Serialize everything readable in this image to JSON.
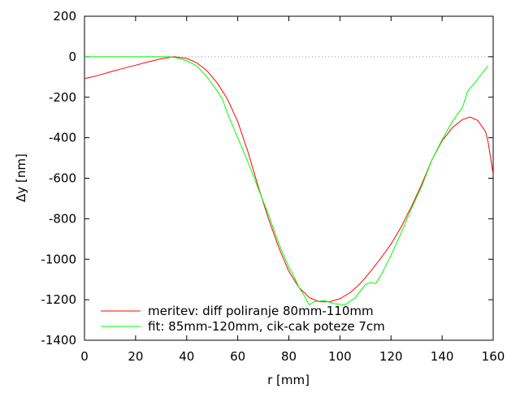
{
  "chart_data": {
    "type": "line",
    "title": "",
    "xlabel": "r [mm]",
    "ylabel": "Δy [nm]",
    "xlim": [
      0,
      160
    ],
    "ylim": [
      -1400,
      200
    ],
    "xticks": [
      0,
      20,
      40,
      60,
      80,
      100,
      120,
      140,
      160
    ],
    "yticks": [
      200,
      0,
      -200,
      -400,
      -600,
      -800,
      -1000,
      -1200,
      -1400
    ],
    "xtick_labels": [
      "0",
      "20",
      "40",
      "60",
      "80",
      "100",
      "120",
      "140",
      "160"
    ],
    "ytick_labels": [
      "200",
      "0",
      "-200",
      "-400",
      "-600",
      "-800",
      "-1000",
      "-1200",
      "-1400"
    ],
    "zero_line": true,
    "legend_position": "bottom-left",
    "series": [
      {
        "name": "meritev: diff poliranje 80mm-110mm",
        "color": "#ff0000",
        "x": [
          0,
          3,
          6,
          10,
          15,
          20,
          25,
          30,
          35,
          40,
          44,
          48,
          52,
          56,
          60,
          64,
          68,
          72,
          76,
          80,
          84,
          88,
          92,
          96,
          100,
          104,
          108,
          112,
          116,
          120,
          124,
          128,
          132,
          136,
          140,
          144,
          148,
          151,
          154,
          157,
          158,
          160
        ],
        "y": [
          -107,
          -100,
          -90,
          -75,
          -58,
          -42,
          -25,
          -10,
          0,
          -8,
          -30,
          -70,
          -130,
          -210,
          -320,
          -470,
          -640,
          -800,
          -940,
          -1060,
          -1140,
          -1190,
          -1210,
          -1210,
          -1195,
          -1165,
          -1120,
          -1060,
          -995,
          -925,
          -840,
          -740,
          -630,
          -510,
          -415,
          -350,
          -310,
          -298,
          -315,
          -370,
          -420,
          -580
        ]
      },
      {
        "name": "fit: 85mm-120mm, cik-cak poteze 7cm",
        "color": "#00ff00",
        "x": [
          0,
          10,
          20,
          30,
          33,
          36,
          40,
          44,
          48,
          52,
          54,
          56,
          58,
          60,
          64,
          68,
          72,
          76,
          80,
          82,
          84,
          86,
          88,
          90,
          94,
          98,
          102,
          106,
          110,
          112,
          114,
          116,
          120,
          124,
          128,
          132,
          136,
          140,
          144,
          148,
          150,
          154,
          157,
          158
        ],
        "y": [
          0,
          0,
          0,
          0,
          0,
          -5,
          -20,
          -45,
          -100,
          -170,
          -210,
          -280,
          -340,
          -400,
          -520,
          -650,
          -780,
          -920,
          -1040,
          -1085,
          -1140,
          -1180,
          -1225,
          -1210,
          -1205,
          -1220,
          -1225,
          -1190,
          -1125,
          -1115,
          -1120,
          -1080,
          -980,
          -870,
          -750,
          -640,
          -510,
          -410,
          -320,
          -250,
          -170,
          -110,
          -60,
          -45
        ]
      }
    ]
  }
}
